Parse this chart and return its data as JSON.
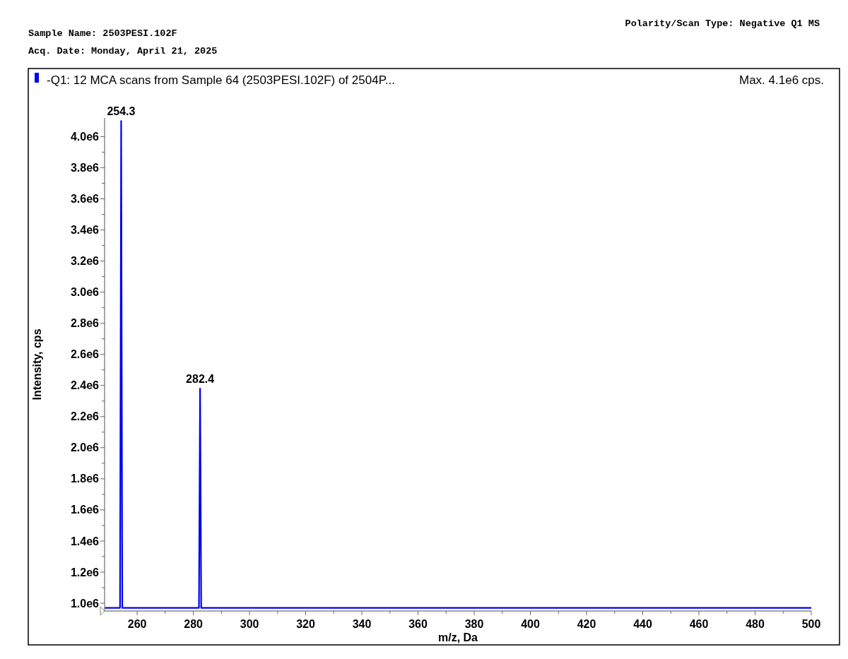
{
  "chart_data": {
    "type": "line",
    "title": "-Q1: 12 MCA scans from Sample 64 (2503PESI.102F) of 2504P...",
    "subtitle": "Max. 4.1e6 cps.",
    "xlabel": "m/z, Da",
    "ylabel": "Intensity, cps",
    "annotations": [
      "Sample Name: 2503PESI.102F",
      "Acq. Date: Monday, April 21, 2025",
      "Polarity/Scan Type: Negative Q1 MS",
      {
        "text": "254.3",
        "x": 254.3,
        "y": 4100000
      },
      {
        "text": "282.4",
        "x": 282.4,
        "y": 2380000
      }
    ],
    "series": [
      {
        "color": "#0000ee",
        "x": [
          248.4,
          253.9,
          254.3,
          254.7,
          282.0,
          282.4,
          282.8,
          500
        ],
        "values": [
          970000,
          970000,
          4100000,
          970000,
          970000,
          2380000,
          970000,
          970000
        ]
      }
    ],
    "xlim": [
      248.4,
      500
    ],
    "xticks": [
      260,
      {
        "value": 270,
        "label": null
      },
      280,
      {
        "value": 290,
        "label": null
      },
      300,
      {
        "value": 310,
        "label": null
      },
      320,
      {
        "value": 330,
        "label": null
      },
      340,
      {
        "value": 350,
        "label": null
      },
      360,
      {
        "value": 370,
        "label": null
      },
      380,
      {
        "value": 390,
        "label": null
      },
      400,
      {
        "value": 410,
        "label": null
      },
      420,
      {
        "value": 430,
        "label": null
      },
      440,
      {
        "value": 450,
        "label": null
      },
      460,
      {
        "value": 470,
        "label": null
      },
      480,
      {
        "value": 490,
        "label": null
      },
      500
    ],
    "ylim": [
      950000,
      4120000
    ],
    "yticks": [
      {
        "value": 1000000,
        "label": "1.0e6"
      },
      {
        "value": 1100000,
        "label": null
      },
      {
        "value": 1200000,
        "label": "1.2e6"
      },
      {
        "value": 1300000,
        "label": null
      },
      {
        "value": 1400000,
        "label": "1.4e6"
      },
      {
        "value": 1500000,
        "label": null
      },
      {
        "value": 1600000,
        "label": "1.6e6"
      },
      {
        "value": 1700000,
        "label": null
      },
      {
        "value": 1800000,
        "label": "1.8e6"
      },
      {
        "value": 1900000,
        "label": null
      },
      {
        "value": 2000000,
        "label": "2.0e6"
      },
      {
        "value": 2100000,
        "label": null
      },
      {
        "value": 2200000,
        "label": "2.2e6"
      },
      {
        "value": 2300000,
        "label": null
      },
      {
        "value": 2400000,
        "label": "2.4e6"
      },
      {
        "value": 2500000,
        "label": null
      },
      {
        "value": 2600000,
        "label": "2.6e6"
      },
      {
        "value": 2700000,
        "label": null
      },
      {
        "value": 2800000,
        "label": "2.8e6"
      },
      {
        "value": 2900000,
        "label": null
      },
      {
        "value": 3000000,
        "label": "3.0e6"
      },
      {
        "value": 3100000,
        "label": null
      },
      {
        "value": 3200000,
        "label": "3.2e6"
      },
      {
        "value": 3300000,
        "label": null
      },
      {
        "value": 3400000,
        "label": "3.4e6"
      },
      {
        "value": 3500000,
        "label": null
      },
      {
        "value": 3600000,
        "label": "3.6e6"
      },
      {
        "value": 3700000,
        "label": null
      },
      {
        "value": 3800000,
        "label": "3.8e6"
      },
      {
        "value": 3900000,
        "label": null
      },
      {
        "value": 4000000,
        "label": "4.0e6"
      }
    ],
    "grid": false,
    "marker": "none",
    "line_style": "solid"
  }
}
